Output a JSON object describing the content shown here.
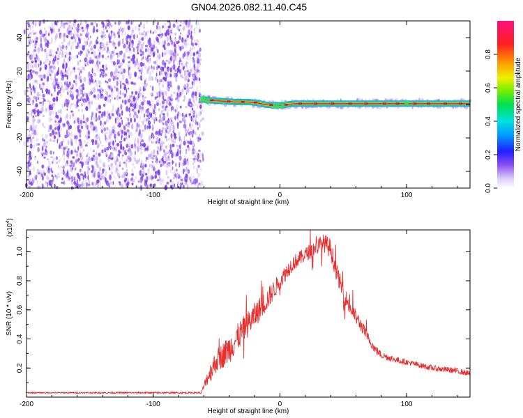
{
  "title": "GN04.2026.082.11.40.C45",
  "colors": {
    "line": "#e53030",
    "ridge_core": "#e8304a",
    "noise": "#7a3cf0"
  },
  "chart_data": [
    {
      "type": "heatmap",
      "xlabel": "Height of straight line (km)",
      "ylabel": "Frequency (Hz)",
      "xlim": [
        -200,
        150
      ],
      "ylim": [
        -50,
        50
      ],
      "xticks": [
        {
          "v": -200,
          "label": "-200"
        },
        {
          "v": -100,
          "label": "-100"
        },
        {
          "v": 0,
          "label": "0"
        },
        {
          "v": 100,
          "label": "100"
        }
      ],
      "yticks": [
        {
          "v": -40,
          "label": "-40"
        },
        {
          "v": -20,
          "label": "-20"
        },
        {
          "v": 0,
          "label": "0"
        },
        {
          "v": 20,
          "label": "20"
        },
        {
          "v": 40,
          "label": "40"
        }
      ],
      "noise_region": [
        -200,
        -62
      ],
      "ridge": {
        "x": [
          -62,
          -55,
          -45,
          -35,
          -25,
          -18,
          -12,
          -6,
          0,
          5,
          12,
          30,
          60,
          100,
          150
        ],
        "freq": [
          3,
          2.5,
          2,
          1.5,
          1.5,
          1,
          0,
          -0.5,
          -0.5,
          0,
          0.5,
          0.5,
          0.5,
          0.5,
          0.5
        ]
      },
      "colorbar": {
        "label": "Normalized spectral amplitude",
        "range": [
          0,
          1
        ],
        "ticks": [
          {
            "v": 0.0,
            "label": "0.0"
          },
          {
            "v": 0.2,
            "label": "0.2"
          },
          {
            "v": 0.4,
            "label": "0.4"
          },
          {
            "v": 0.6,
            "label": "0.6"
          },
          {
            "v": 0.8,
            "label": "0.8"
          }
        ]
      }
    },
    {
      "type": "line",
      "xlabel": "Height of straight line (km)",
      "ylabel": "SNR (10 * v/v)",
      "yunit": "(x10",
      "yunit_exp": "4",
      "xlim": [
        -200,
        150
      ],
      "ylim": [
        0,
        1.15
      ],
      "xticks": [
        {
          "v": -200,
          "label": "-200"
        },
        {
          "v": -100,
          "label": "-100"
        },
        {
          "v": 0,
          "label": "0"
        },
        {
          "v": 100,
          "label": "100"
        }
      ],
      "yticks": [
        {
          "v": 0.2,
          "label": "0.2"
        },
        {
          "v": 0.4,
          "label": "0.4"
        },
        {
          "v": 0.6,
          "label": "0.6"
        },
        {
          "v": 0.8,
          "label": "0.8"
        },
        {
          "v": 1.0,
          "label": "1.0"
        }
      ],
      "envelope": {
        "x": [
          -200,
          -62,
          -58,
          -50,
          -40,
          -30,
          -20,
          -10,
          0,
          10,
          20,
          30,
          35,
          40,
          45,
          50,
          55,
          60,
          65,
          70,
          75,
          80,
          90,
          100,
          110,
          120,
          130,
          140,
          150
        ],
        "y": [
          0.03,
          0.03,
          0.12,
          0.25,
          0.33,
          0.45,
          0.56,
          0.67,
          0.8,
          0.92,
          0.98,
          1.04,
          1.06,
          1.02,
          0.85,
          0.72,
          0.62,
          0.55,
          0.48,
          0.4,
          0.33,
          0.29,
          0.26,
          0.24,
          0.22,
          0.2,
          0.19,
          0.18,
          0.16
        ]
      },
      "noise_amplitude": {
        "x": [
          -200,
          -62,
          -55,
          -40,
          -20,
          0,
          20,
          40,
          60,
          80,
          100,
          150
        ],
        "y": [
          0.004,
          0.006,
          0.07,
          0.1,
          0.09,
          0.06,
          0.05,
          0.07,
          0.05,
          0.025,
          0.02,
          0.02
        ]
      }
    }
  ]
}
